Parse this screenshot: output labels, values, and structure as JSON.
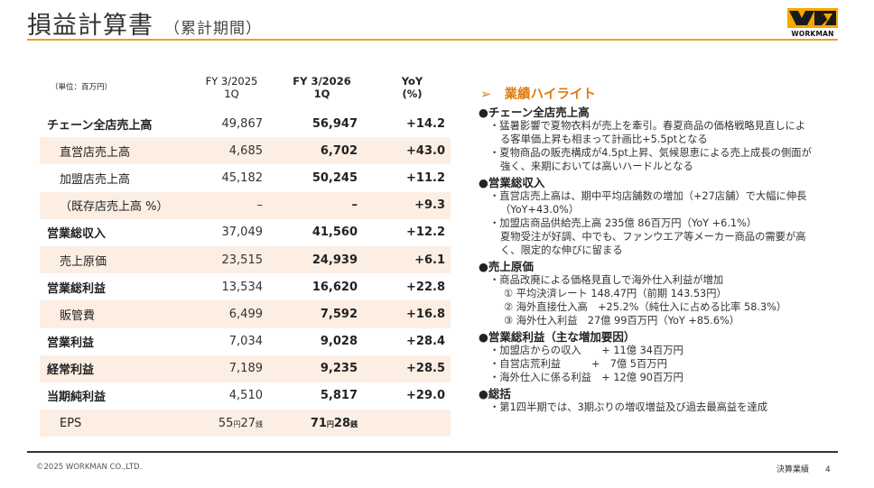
{
  "header": {
    "title": "損益計算書",
    "subtitle": "（累計期間）",
    "logo_text": "WORKMAN"
  },
  "table": {
    "unit": "（単位：百万円）",
    "col1": [
      "FY 3/2025",
      "1Q"
    ],
    "col2": [
      "FY 3/2026",
      "1Q"
    ],
    "col3": [
      "YoY",
      "(%)"
    ],
    "rows": [
      {
        "label": "チェーン全店売上高",
        "v1": "49,867",
        "v2": "56,947",
        "v3": "+14.2"
      },
      {
        "label": "直営店売上高",
        "v1": "4,685",
        "v2": "6,702",
        "v3": "+43.0"
      },
      {
        "label": "加盟店売上高",
        "v1": "45,182",
        "v2": "50,245",
        "v3": "+11.2"
      },
      {
        "label": "（既存店売上高 %）",
        "v1": "–",
        "v2": "–",
        "v3": "+9.3"
      },
      {
        "label": "営業総収入",
        "v1": "37,049",
        "v2": "41,560",
        "v3": "+12.2"
      },
      {
        "label": "売上原価",
        "v1": "23,515",
        "v2": "24,939",
        "v3": "+6.1"
      },
      {
        "label": "営業総利益",
        "v1": "13,534",
        "v2": "16,620",
        "v3": "+22.8"
      },
      {
        "label": "販管費",
        "v1": "6,499",
        "v2": "7,592",
        "v3": "+16.8"
      },
      {
        "label": "営業利益",
        "v1": "7,034",
        "v2": "9,028",
        "v3": "+28.4"
      },
      {
        "label": "経常利益",
        "v1": "7,189",
        "v2": "9,235",
        "v3": "+28.5"
      },
      {
        "label": "当期純利益",
        "v1": "4,510",
        "v2": "5,817",
        "v3": "+29.0"
      }
    ],
    "eps": {
      "label": "EPS",
      "v1_a": "55",
      "v1_b": "円",
      "v1_c": "27",
      "v1_d": "銭",
      "v2_a": "71",
      "v2_b": "円",
      "v2_c": "28",
      "v2_d": "銭"
    }
  },
  "highlights": {
    "heading": "➢　業績ハイライト",
    "s1": {
      "title": "●チェーン全店売上高",
      "l1": "・猛暑影響で夏物衣料が売上を牽引。春夏商品の価格戦略見直しによ",
      "l2": "る客単価上昇も相まって計画比+5.5ptとなる",
      "l3": "・夏物商品の販売構成が4.5pt上昇、気候恩恵による売上成長の側面が",
      "l4": "強く、来期においては高いハードルとなる"
    },
    "s2": {
      "title": "●営業総収入",
      "l1": "・直営店売上高は、期中平均店舗数の増加（+27店舗）で大幅に伸長",
      "l2": "（YoY+43.0%）",
      "l3": "・加盟店商品供給売上高 235億 86百万円（YoY +6.1%）",
      "l4": "夏物受注が好調、中でも、ファンウエア等メーカー商品の需要が高",
      "l5": "く、限定的な伸びに留まる"
    },
    "s3": {
      "title": "●売上原価",
      "l1": "・商品改廃による価格見直しで海外仕入利益が増加",
      "l2": "① 平均決済レート 148.47円（前期 143.53円）",
      "l3": "② 海外直接仕入高　+25.2%（純仕入に占める比率 58.3%）",
      "l4": "③ 海外仕入利益　27億 99百万円（YoY +85.6%）"
    },
    "s4": {
      "title": "●営業総利益（主な増加要因）",
      "l1": "・加盟店からの収入　　+ 11億 34百万円",
      "l2": "・自営店荒利益　　　+　7億 5百万円",
      "l3": "・海外仕入に係る利益　+ 12億 90百万円"
    },
    "s5": {
      "title": "●総括",
      "l1": "・第1四半期では、3期ぶりの増収増益及び過去最高益を達成"
    }
  },
  "footer": {
    "copyright": "©2025 WORKMAN CO.,LTD.",
    "section": "決算業績",
    "page": "4"
  }
}
